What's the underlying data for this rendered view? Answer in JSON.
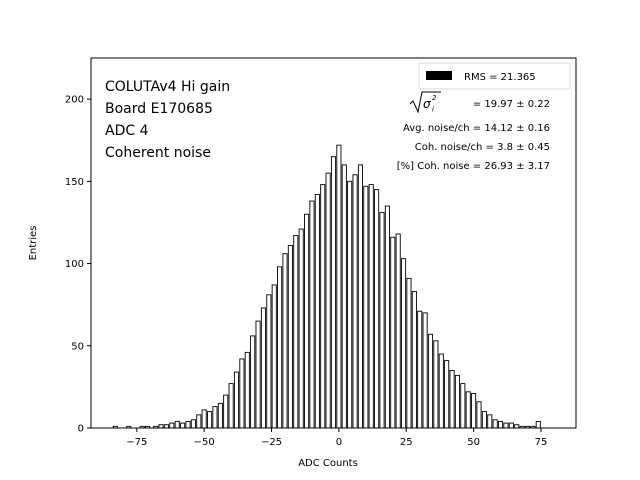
{
  "chart_data": {
    "type": "bar",
    "xlabel": "ADC Counts",
    "ylabel": "Entries",
    "xlim": [
      -92,
      88
    ],
    "ylim": [
      0,
      225
    ],
    "xticks": [
      -75,
      -50,
      -25,
      0,
      25,
      50,
      75
    ],
    "yticks": [
      0,
      50,
      100,
      150,
      200
    ],
    "xtick_labels": [
      "−75",
      "−50",
      "−25",
      "0",
      "25",
      "50",
      "75"
    ],
    "ytick_labels": [
      "0",
      "50",
      "100",
      "150",
      "200"
    ],
    "bar_color": "#000000",
    "annotation_lines": [
      "COLUTAv4 Hi gain",
      "Board E170685",
      "ADC 4",
      "Coherent noise"
    ],
    "legend": {
      "label": "RMS = 21.365",
      "placement": "upper right"
    },
    "stats": {
      "sigma_prefix": "= 19.97 ± 0.22",
      "avg_noise": "Avg. noise/ch = 14.12 ± 0.16",
      "coh_noise": "Coh. noise/ch = 3.8 ± 0.45",
      "coh_percent": "[%] Coh. noise = 26.93 ± 3.17"
    },
    "x": [
      -83,
      -78,
      -73,
      -71,
      -68,
      -66,
      -64,
      -62,
      -60,
      -58,
      -56,
      -54,
      -52,
      -50,
      -48,
      -46,
      -44,
      -42,
      -40,
      -38,
      -36,
      -34,
      -32,
      -30,
      -28,
      -26,
      -24,
      -22,
      -20,
      -18,
      -16,
      -14,
      -12,
      -10,
      -8,
      -6,
      -4,
      -2,
      0,
      2,
      4,
      6,
      8,
      10,
      12,
      14,
      16,
      18,
      20,
      22,
      24,
      26,
      28,
      30,
      32,
      34,
      36,
      38,
      40,
      42,
      44,
      46,
      48,
      50,
      52,
      54,
      56,
      58,
      60,
      62,
      64,
      66,
      68,
      70,
      72,
      74
    ],
    "values": [
      1,
      1,
      1,
      1,
      1,
      2,
      2,
      3,
      4,
      3,
      4,
      5,
      8,
      11,
      10,
      13,
      15,
      20,
      27,
      34,
      42,
      46,
      56,
      65,
      73,
      81,
      87,
      98,
      106,
      111,
      117,
      121,
      130,
      138,
      142,
      148,
      155,
      165,
      172,
      160,
      150,
      154,
      160,
      147,
      148,
      145,
      131,
      135,
      116,
      118,
      103,
      91,
      83,
      71,
      70,
      57,
      53,
      45,
      41,
      35,
      32,
      27,
      22,
      21,
      16,
      10,
      8,
      5,
      4,
      3,
      3,
      2,
      1,
      1,
      1,
      4
    ]
  }
}
